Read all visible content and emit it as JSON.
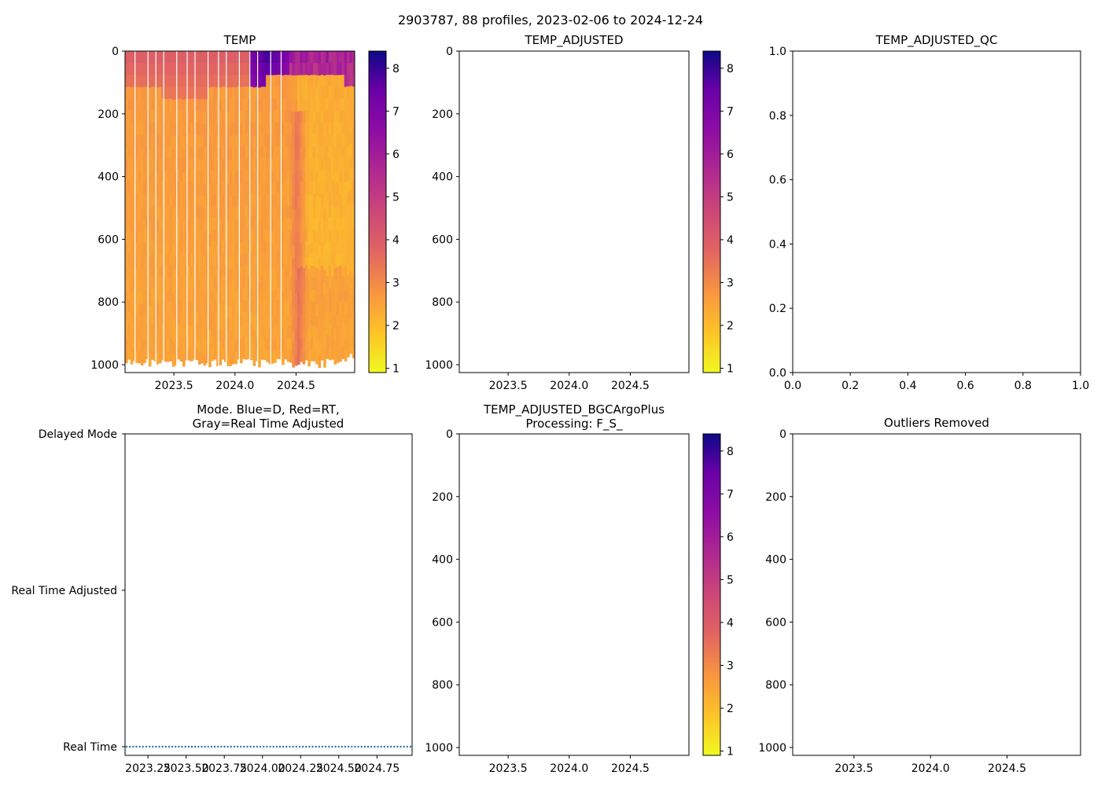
{
  "figure": {
    "suptitle": "2903787, 88 profiles, 2023-02-06 to 2024-12-24"
  },
  "colorbar": {
    "ticks": [
      "8",
      "7",
      "6",
      "5",
      "4",
      "3",
      "2",
      "1"
    ],
    "vmin": 0.9,
    "vmax": 8.4
  },
  "chart_data": [
    {
      "id": "temp",
      "type": "heatmap",
      "title": "TEMP",
      "x_tick_labels": [
        "2023.5",
        "2024.0",
        "2024.5"
      ],
      "x_ticks": [
        2023.5,
        2024.0,
        2024.5
      ],
      "xlim": [
        2023.1,
        2024.98
      ],
      "y_tick_labels": [
        "0",
        "200",
        "400",
        "600",
        "800",
        "1000"
      ],
      "y_ticks": [
        0,
        200,
        400,
        600,
        800,
        1000
      ],
      "ylim": [
        1025,
        0
      ],
      "colorbar_label": "",
      "temperature_range": [
        0.9,
        8.4
      ],
      "profiles": 88,
      "description_values": {
        "surface_temp_early": 4.0,
        "surface_temp_2024_2": 8.0,
        "deep_temp": 2.7,
        "max_pressure": 1000
      }
    },
    {
      "id": "temp_adjusted",
      "type": "heatmap",
      "title": "TEMP_ADJUSTED",
      "x_tick_labels": [
        "2023.5",
        "2024.0",
        "2024.5"
      ],
      "y_tick_labels": [
        "0",
        "200",
        "400",
        "600",
        "800",
        "1000"
      ],
      "ylim": [
        1025,
        0
      ],
      "values": []
    },
    {
      "id": "temp_adjusted_qc",
      "type": "scatter",
      "title": "TEMP_ADJUSTED_QC",
      "x_tick_labels": [
        "0.0",
        "0.2",
        "0.4",
        "0.6",
        "0.8",
        "1.0"
      ],
      "y_tick_labels": [
        "0.0",
        "0.2",
        "0.4",
        "0.6",
        "0.8",
        "1.0"
      ],
      "xlim": [
        0,
        1
      ],
      "ylim": [
        0,
        1
      ],
      "values": []
    },
    {
      "id": "mode",
      "type": "scatter",
      "title_line1": "Mode. Blue=D, Red=RT,",
      "title_line2": "Gray=Real Time Adjusted",
      "x_tick_labels": [
        "2023.25",
        "2023.50",
        "2023.75",
        "2024.00",
        "2024.25",
        "2024.50",
        "2024.75"
      ],
      "x_ticks": [
        2023.25,
        2023.5,
        2023.75,
        2024.0,
        2024.25,
        2024.5,
        2024.75
      ],
      "xlim": [
        2023.1,
        2024.98
      ],
      "y_tick_labels": [
        "Delayed Mode",
        "Real Time Adjusted",
        "Real Time"
      ],
      "y_values": [
        "Real Time"
      ],
      "n_points": 88,
      "x_start": 2023.1,
      "x_end": 2024.98
    },
    {
      "id": "bgc",
      "type": "heatmap",
      "title_line1": "TEMP_ADJUSTED_BGCArgoPlus",
      "title_line2": "Processing: F_S_",
      "x_tick_labels": [
        "2023.5",
        "2024.0",
        "2024.5"
      ],
      "y_tick_labels": [
        "0",
        "200",
        "400",
        "600",
        "800",
        "1000"
      ],
      "ylim": [
        1025,
        0
      ],
      "values": []
    },
    {
      "id": "outliers",
      "type": "scatter",
      "title": "Outliers Removed",
      "x_tick_labels": [
        "2023.5",
        "2024.0",
        "2024.5"
      ],
      "y_tick_labels": [
        "0",
        "200",
        "400",
        "600",
        "800",
        "1000"
      ],
      "ylim": [
        1025,
        0
      ],
      "values": []
    }
  ]
}
